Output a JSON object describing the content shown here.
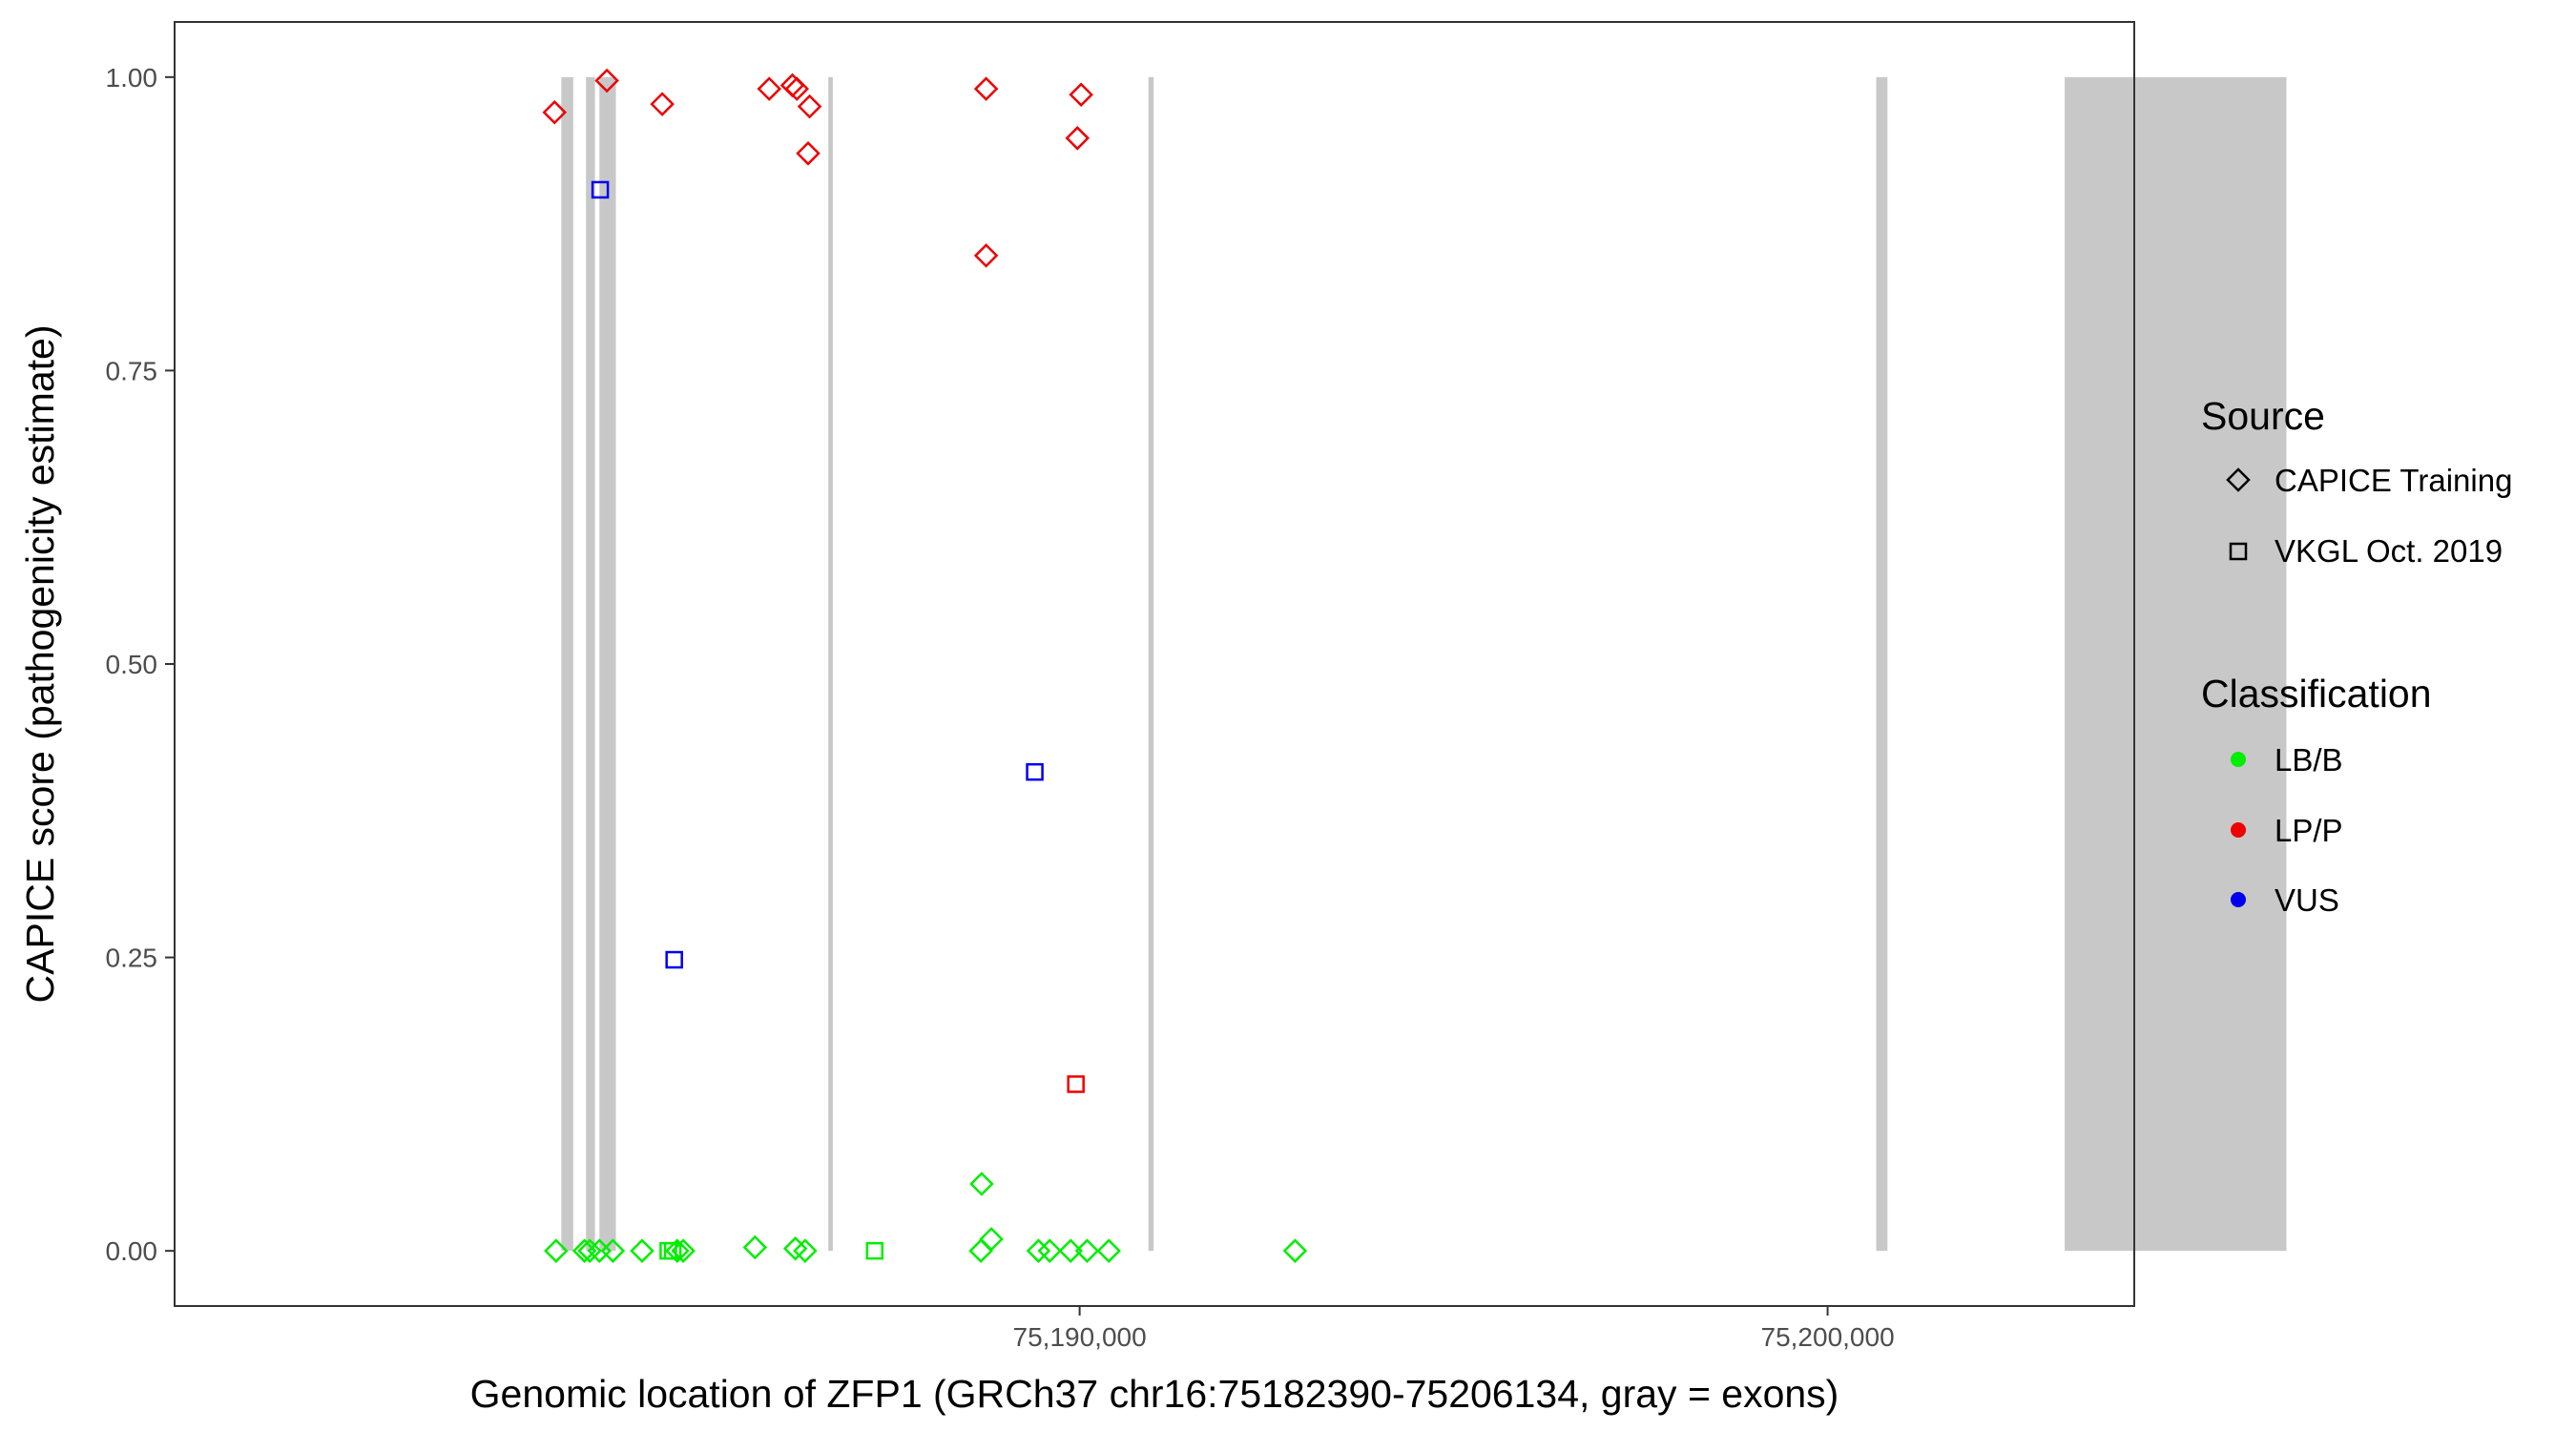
{
  "chart_data": {
    "type": "scatter",
    "title": "",
    "xlabel": "Genomic location of ZFP1 (GRCh37 chr16:75182390-75206134, gray = exons)",
    "ylabel": "CAPICE score (pathogenicity estimate)",
    "xlim": [
      75177900,
      75204100
    ],
    "ylim": [
      -0.047,
      1.047
    ],
    "x_ticks": [
      75190000,
      75200000
    ],
    "x_tick_labels": [
      "75,190,000",
      "75,200,000"
    ],
    "y_ticks": [
      0,
      0.25,
      0.5,
      0.75,
      1
    ],
    "y_tick_labels": [
      "0.00",
      "0.25",
      "0.50",
      "0.75",
      "1.00"
    ],
    "grid": false,
    "exons": [
      [
        75183070,
        75183230
      ],
      [
        75183400,
        75183520
      ],
      [
        75183580,
        75183800
      ],
      [
        75186640,
        75186700
      ],
      [
        75190920,
        75190990
      ],
      [
        75200650,
        75200800
      ],
      [
        75203170,
        75206134
      ]
    ],
    "legends": [
      {
        "title": "Source",
        "entries": [
          {
            "label": "CAPICE Training",
            "shape": "diamond"
          },
          {
            "label": "VKGL Oct. 2019",
            "shape": "square"
          }
        ]
      },
      {
        "title": "Classification",
        "entries": [
          {
            "label": "LB/B",
            "color": "#00ee00"
          },
          {
            "label": "LP/P",
            "color": "#ee0000"
          },
          {
            "label": "VUS",
            "color": "#0000ee"
          }
        ]
      }
    ],
    "colors": {
      "LB/B": "#00ee00",
      "LP/P": "#ee0000",
      "VUS": "#0000ee"
    },
    "points": [
      {
        "x": 75182980,
        "y": 0.97,
        "source": "CAPICE Training",
        "class": "LP/P"
      },
      {
        "x": 75183680,
        "y": 0.997,
        "source": "CAPICE Training",
        "class": "LP/P"
      },
      {
        "x": 75184420,
        "y": 0.977,
        "source": "CAPICE Training",
        "class": "LP/P"
      },
      {
        "x": 75185850,
        "y": 0.99,
        "source": "CAPICE Training",
        "class": "LP/P"
      },
      {
        "x": 75186160,
        "y": 0.993,
        "source": "CAPICE Training",
        "class": "LP/P"
      },
      {
        "x": 75186220,
        "y": 0.99,
        "source": "CAPICE Training",
        "class": "LP/P"
      },
      {
        "x": 75186390,
        "y": 0.975,
        "source": "CAPICE Training",
        "class": "LP/P"
      },
      {
        "x": 75186370,
        "y": 0.935,
        "source": "CAPICE Training",
        "class": "LP/P"
      },
      {
        "x": 75188750,
        "y": 0.99,
        "source": "CAPICE Training",
        "class": "LP/P"
      },
      {
        "x": 75188750,
        "y": 0.848,
        "source": "CAPICE Training",
        "class": "LP/P"
      },
      {
        "x": 75190020,
        "y": 0.985,
        "source": "CAPICE Training",
        "class": "LP/P"
      },
      {
        "x": 75189970,
        "y": 0.948,
        "source": "CAPICE Training",
        "class": "LP/P"
      },
      {
        "x": 75183590,
        "y": 0.904,
        "source": "VKGL Oct. 2019",
        "class": "VUS"
      },
      {
        "x": 75184580,
        "y": 0.248,
        "source": "VKGL Oct. 2019",
        "class": "VUS"
      },
      {
        "x": 75189400,
        "y": 0.408,
        "source": "VKGL Oct. 2019",
        "class": "VUS"
      },
      {
        "x": 75189950,
        "y": 0.142,
        "source": "VKGL Oct. 2019",
        "class": "LP/P"
      },
      {
        "x": 75183000,
        "y": 0.0,
        "source": "CAPICE Training",
        "class": "LB/B"
      },
      {
        "x": 75183380,
        "y": 0.0,
        "source": "CAPICE Training",
        "class": "LB/B"
      },
      {
        "x": 75183450,
        "y": 0.0,
        "source": "CAPICE Training",
        "class": "LB/B"
      },
      {
        "x": 75183580,
        "y": 0.0,
        "source": "CAPICE Training",
        "class": "LB/B"
      },
      {
        "x": 75183760,
        "y": 0.0,
        "source": "CAPICE Training",
        "class": "LB/B"
      },
      {
        "x": 75184150,
        "y": 0.0,
        "source": "CAPICE Training",
        "class": "LB/B"
      },
      {
        "x": 75184620,
        "y": 0.0,
        "source": "CAPICE Training",
        "class": "LB/B"
      },
      {
        "x": 75184700,
        "y": 0.0,
        "source": "CAPICE Training",
        "class": "LB/B"
      },
      {
        "x": 75185660,
        "y": 0.003,
        "source": "CAPICE Training",
        "class": "LB/B"
      },
      {
        "x": 75186200,
        "y": 0.002,
        "source": "CAPICE Training",
        "class": "LB/B"
      },
      {
        "x": 75186330,
        "y": 0.0,
        "source": "CAPICE Training",
        "class": "LB/B"
      },
      {
        "x": 75188690,
        "y": 0.057,
        "source": "CAPICE Training",
        "class": "LB/B"
      },
      {
        "x": 75188820,
        "y": 0.01,
        "source": "CAPICE Training",
        "class": "LB/B"
      },
      {
        "x": 75188680,
        "y": 0.0,
        "source": "CAPICE Training",
        "class": "LB/B"
      },
      {
        "x": 75189450,
        "y": 0.0,
        "source": "CAPICE Training",
        "class": "LB/B"
      },
      {
        "x": 75189600,
        "y": 0.0,
        "source": "CAPICE Training",
        "class": "LB/B"
      },
      {
        "x": 75189880,
        "y": 0.0,
        "source": "CAPICE Training",
        "class": "LB/B"
      },
      {
        "x": 75190100,
        "y": 0.0,
        "source": "CAPICE Training",
        "class": "LB/B"
      },
      {
        "x": 75190390,
        "y": 0.0,
        "source": "CAPICE Training",
        "class": "LB/B"
      },
      {
        "x": 75192880,
        "y": 0.0,
        "source": "CAPICE Training",
        "class": "LB/B"
      },
      {
        "x": 75184500,
        "y": 0.0,
        "source": "VKGL Oct. 2019",
        "class": "LB/B"
      },
      {
        "x": 75184560,
        "y": 0.0,
        "source": "VKGL Oct. 2019",
        "class": "LB/B"
      },
      {
        "x": 75187260,
        "y": 0.0,
        "source": "VKGL Oct. 2019",
        "class": "LB/B"
      }
    ]
  }
}
